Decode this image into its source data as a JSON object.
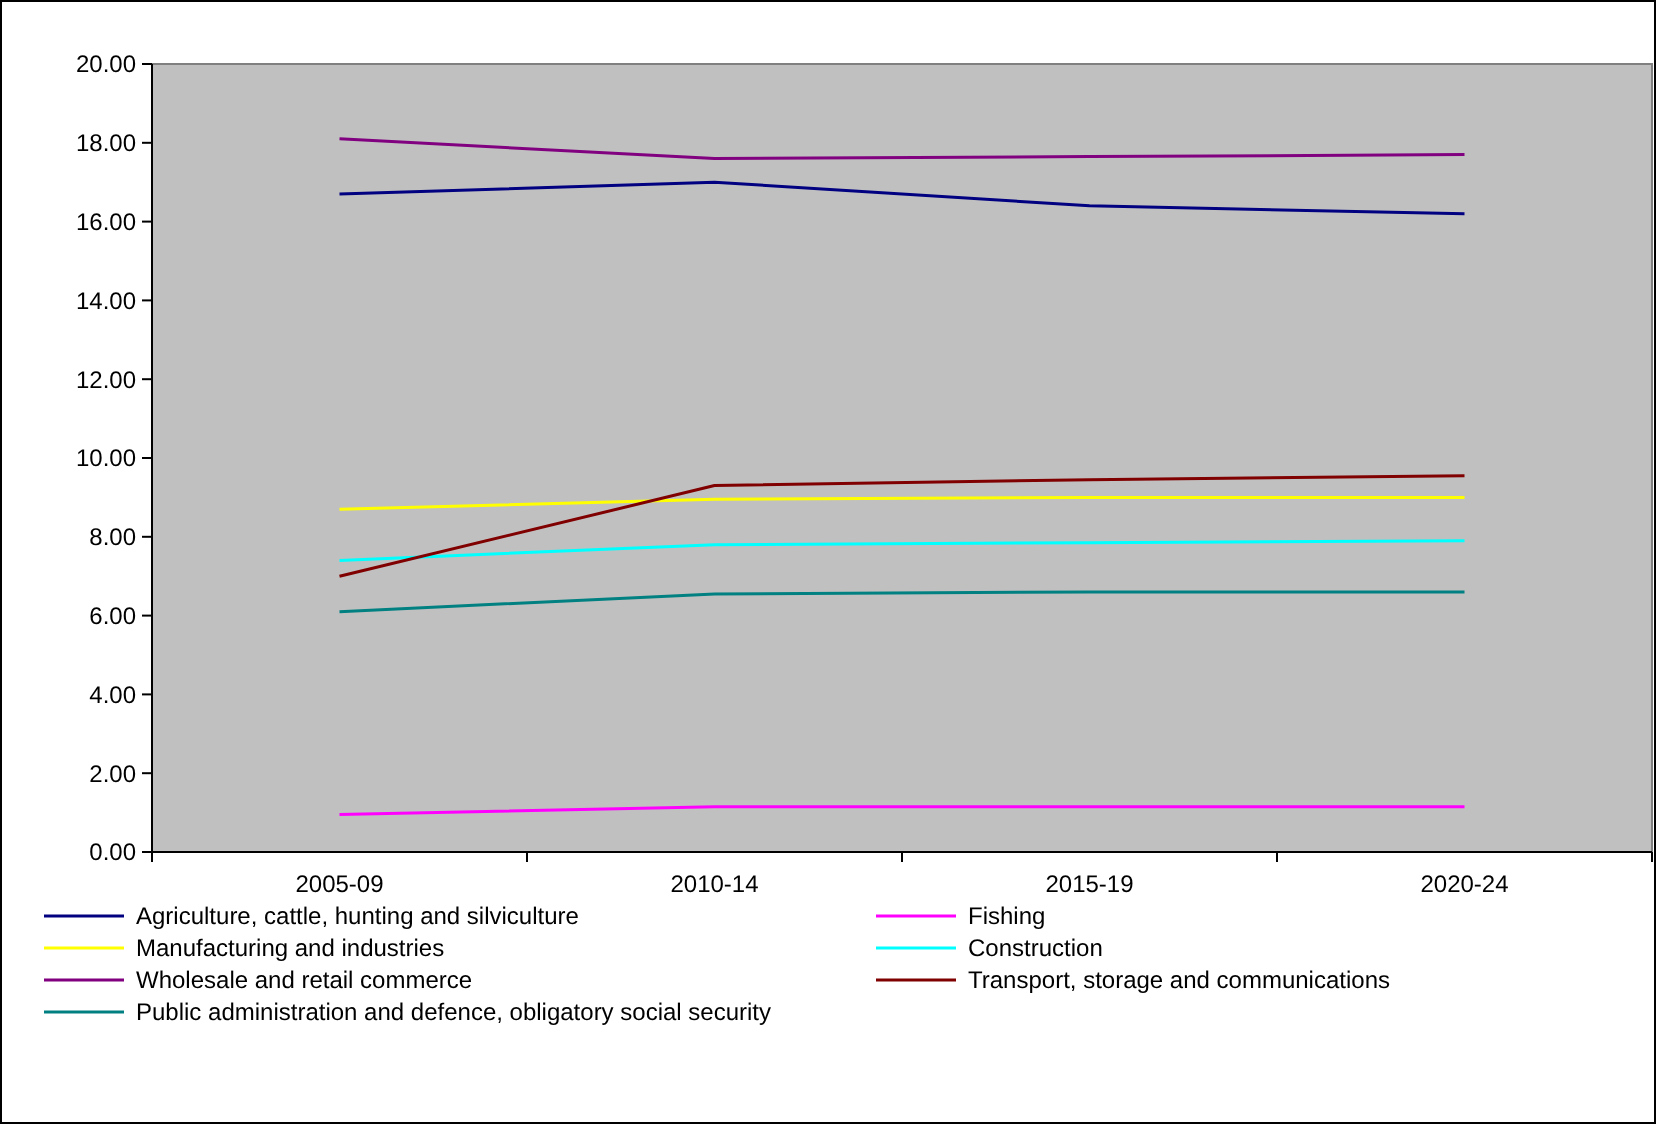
{
  "chart_data": {
    "type": "line",
    "categories": [
      "2005-09",
      "2010-14",
      "2015-19",
      "2020-24"
    ],
    "series": [
      {
        "name": "Agriculture, cattle, hunting and silviculture",
        "color": "#000080",
        "values": [
          16.7,
          17.0,
          16.4,
          16.2
        ]
      },
      {
        "name": "Fishing",
        "color": "#ff00ff",
        "values": [
          0.95,
          1.15,
          1.15,
          1.15
        ]
      },
      {
        "name": "Manufacturing and industries",
        "color": "#ffff00",
        "values": [
          8.7,
          8.95,
          9.0,
          9.0
        ]
      },
      {
        "name": "Construction",
        "color": "#00ffff",
        "values": [
          7.4,
          7.8,
          7.85,
          7.9
        ]
      },
      {
        "name": "Wholesale and retail commerce",
        "color": "#800080",
        "values": [
          18.1,
          17.6,
          17.65,
          17.7
        ]
      },
      {
        "name": "Transport, storage and communications",
        "color": "#800000",
        "values": [
          7.0,
          9.3,
          9.45,
          9.55
        ]
      },
      {
        "name": "Public administration and defence, obligatory social security",
        "color": "#008080",
        "values": [
          6.1,
          6.55,
          6.6,
          6.6
        ]
      }
    ],
    "ylim": [
      0,
      20
    ],
    "yticks": [
      {
        "value": 0,
        "label": "0.00"
      },
      {
        "value": 2,
        "label": "2.00"
      },
      {
        "value": 4,
        "label": "4.00"
      },
      {
        "value": 6,
        "label": "6.00"
      },
      {
        "value": 8,
        "label": "8.00"
      },
      {
        "value": 10,
        "label": "10.00"
      },
      {
        "value": 12,
        "label": "12.00"
      },
      {
        "value": 14,
        "label": "14.00"
      },
      {
        "value": 16,
        "label": "16.00"
      },
      {
        "value": 18,
        "label": "18.00"
      },
      {
        "value": 20,
        "label": "20.00"
      }
    ],
    "grid": false,
    "legend": "bottom",
    "marker": "none",
    "line_style": "solid"
  }
}
